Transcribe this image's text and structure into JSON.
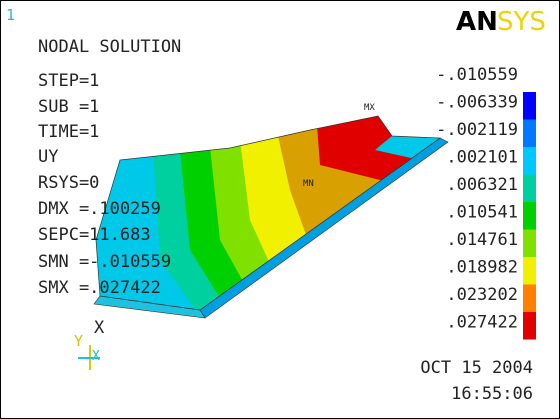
{
  "window": {
    "number": "1",
    "logo": {
      "bold": "AN",
      "light": "SYS"
    }
  },
  "plot": {
    "title": "NODAL SOLUTION",
    "info": [
      "STEP=1",
      "SUB =1",
      "TIME=1",
      "UY",
      "RSYS=0",
      "DMX =.100259",
      "SEPC=11.683",
      "SMN =-.010559",
      "SMX =.027422"
    ],
    "markers": {
      "min": "MN",
      "max": "MX",
      "node": "X"
    },
    "triad": {
      "y": "Y",
      "x": "X"
    }
  },
  "legend": {
    "labels": [
      "-.010559",
      "-.006339",
      "-.002119",
      ".002101",
      ".006321",
      ".010541",
      ".014761",
      ".018982",
      ".023202",
      ".027422"
    ],
    "colors": [
      "#0000ff",
      "#0078ff",
      "#00c8ff",
      "#00d0a0",
      "#00d000",
      "#80e000",
      "#f0f000",
      "#ff8000",
      "#e00000"
    ]
  },
  "footer": {
    "date": "OCT 15 2004",
    "time": "16:55:06"
  }
}
